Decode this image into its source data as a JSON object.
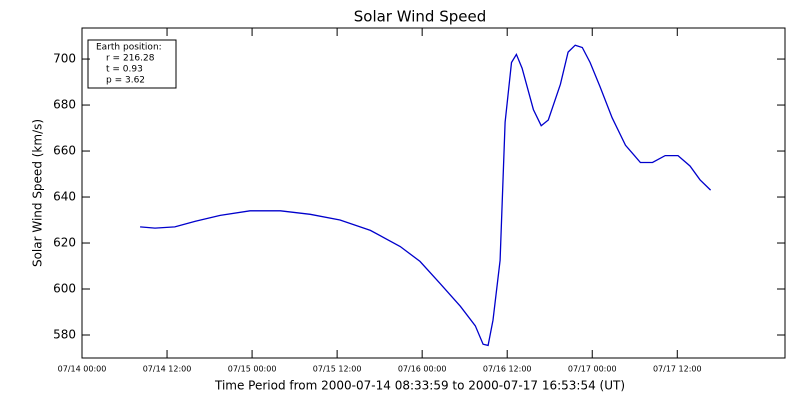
{
  "chart_data": {
    "type": "line",
    "title": "Solar Wind Speed",
    "xlabel": "Time Period from 2000-07-14 08:33:59 to 2000-07-17 16:53:54 (UT)",
    "ylabel": "Solar Wind Speed (km/s)",
    "annotation": [
      "Earth position:",
      "r = 216.28",
      "t = 0.93",
      "p = 3.62"
    ],
    "color": "#0000cc",
    "grid": false,
    "xlim": [
      0,
      99.2
    ],
    "ylim": [
      570,
      713.5
    ],
    "xticks": [
      {
        "value": 0,
        "label": "07/14 00:00"
      },
      {
        "value": 12,
        "label": "07/14 12:00"
      },
      {
        "value": 24,
        "label": "07/15 00:00"
      },
      {
        "value": 36,
        "label": "07/15 12:00"
      },
      {
        "value": 48,
        "label": "07/16 00:00"
      },
      {
        "value": 60,
        "label": "07/16 12:00"
      },
      {
        "value": 72,
        "label": "07/17 00:00"
      },
      {
        "value": 84,
        "label": "07/17 12:00"
      }
    ],
    "yticks": [
      580,
      600,
      620,
      640,
      660,
      680,
      700
    ],
    "x": [
      8.2,
      10.3,
      13.1,
      16,
      19.5,
      23.7,
      28,
      32.2,
      36.4,
      40.7,
      44.9,
      47.7,
      50.5,
      53.4,
      55.5,
      56.6,
      57.3,
      58,
      59,
      59.7,
      60.6,
      61.3,
      62.1,
      63.7,
      64.8,
      65.8,
      67.5,
      68.6,
      69.6,
      70.6,
      71.7,
      73.1,
      74.8,
      76.7,
      78.8,
      80.5,
      82.3,
      84.1,
      85.8,
      87.2,
      88.7
    ],
    "values": [
      627,
      626.5,
      627,
      629.5,
      632,
      634,
      634,
      632.5,
      630,
      625.5,
      618.5,
      612,
      602.5,
      592.5,
      584,
      576,
      575.5,
      586.5,
      612.5,
      672.5,
      698.5,
      702,
      696,
      678,
      671,
      673.5,
      689,
      703,
      706,
      705,
      698.5,
      688,
      674.5,
      662.5,
      655,
      655,
      658,
      658,
      653.5,
      647.5,
      643
    ]
  }
}
